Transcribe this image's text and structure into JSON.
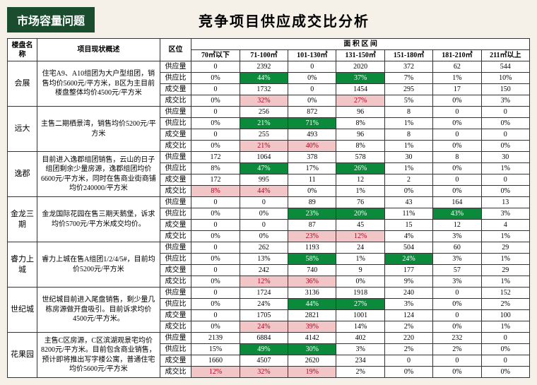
{
  "header": {
    "badge": "市场容量问题",
    "title": "竞争项目供应成交比分析"
  },
  "columns": {
    "name": "楼盘名称",
    "desc": "项目现状概述",
    "metric": "区位",
    "area_group": "面 积 区 间",
    "areas": [
      "70㎡以下",
      "71-100㎡",
      "101-130㎡",
      "131-150㎡",
      "151-180㎡",
      "181-210㎡",
      "211㎡以上"
    ]
  },
  "metrics": [
    "供应量",
    "供应比",
    "成交量",
    "成交比"
  ],
  "colors": {
    "badge_bg": "#1a4d2e",
    "green": "#0a8a3a",
    "pink": "#f2c6c6",
    "pink_text": "#b00020",
    "page_bg": "#f5f0e8"
  },
  "projects": [
    {
      "name": "会展",
      "desc": "住宅A9、A10组团为大户型组团，销售均价5600元/平方米，B区为主目前楼盘整体均价4500元/平方米",
      "rows": [
        {
          "vals": [
            "0",
            "2392",
            "0",
            "2020",
            "372",
            "62",
            "544"
          ],
          "hl": [
            "",
            "",
            "",
            "",
            "",
            "",
            ""
          ]
        },
        {
          "vals": [
            "0%",
            "44%",
            "0%",
            "37%",
            "7%",
            "1%",
            "10%"
          ],
          "hl": [
            "",
            "g",
            "",
            "g",
            "",
            "",
            ""
          ]
        },
        {
          "vals": [
            "0",
            "1732",
            "0",
            "1454",
            "295",
            "17",
            "150"
          ],
          "hl": [
            "",
            "",
            "",
            "",
            "",
            "",
            ""
          ]
        },
        {
          "vals": [
            "0%",
            "32%",
            "0%",
            "27%",
            "5%",
            "0%",
            "3%"
          ],
          "hl": [
            "",
            "p",
            "",
            "p",
            "",
            "",
            ""
          ]
        }
      ]
    },
    {
      "name": "远大",
      "desc": "主售二期栖景湾，销售均价5200元/平方米",
      "rows": [
        {
          "vals": [
            "0",
            "256",
            "872",
            "96",
            "8",
            "0",
            "0"
          ],
          "hl": [
            "",
            "",
            "",
            "",
            "",
            "",
            ""
          ]
        },
        {
          "vals": [
            "0%",
            "21%",
            "71%",
            "8%",
            "1%",
            "0%",
            "0%"
          ],
          "hl": [
            "",
            "g",
            "g",
            "",
            "",
            "",
            ""
          ]
        },
        {
          "vals": [
            "0",
            "255",
            "493",
            "96",
            "8",
            "0",
            "0"
          ],
          "hl": [
            "",
            "",
            "",
            "",
            "",
            "",
            ""
          ]
        },
        {
          "vals": [
            "0%",
            "21%",
            "40%",
            "8%",
            "1%",
            "0%",
            "0%"
          ],
          "hl": [
            "",
            "p",
            "p",
            "",
            "",
            "",
            ""
          ]
        }
      ]
    },
    {
      "name": "逸郡",
      "desc": "目前进入逸郡组团销售，云山的日子组团剩余少量房源，逸郡组团均价6600元/平方米，同时在售商业街商铺均价240000/平方米",
      "rows": [
        {
          "vals": [
            "172",
            "1064",
            "378",
            "578",
            "30",
            "8",
            "30"
          ],
          "hl": [
            "",
            "",
            "",
            "",
            "",
            "",
            ""
          ]
        },
        {
          "vals": [
            "8%",
            "47%",
            "17%",
            "26%",
            "1%",
            "0%",
            "1%"
          ],
          "hl": [
            "",
            "g",
            "",
            "g",
            "",
            "",
            ""
          ]
        },
        {
          "vals": [
            "172",
            "995",
            "11",
            "12",
            "2",
            "0",
            "0"
          ],
          "hl": [
            "",
            "",
            "",
            "",
            "",
            "",
            ""
          ]
        },
        {
          "vals": [
            "8%",
            "44%",
            "0%",
            "1%",
            "0%",
            "0%",
            "0%"
          ],
          "hl": [
            "p",
            "p",
            "",
            "",
            "",
            "",
            ""
          ]
        }
      ]
    },
    {
      "name": "金龙三期",
      "desc": "金龙国际花园在售三期天鹅堡，诉求均价5700元/平方米成交均价。",
      "rows": [
        {
          "vals": [
            "0",
            "0",
            "89",
            "76",
            "43",
            "164",
            "13"
          ],
          "hl": [
            "",
            "",
            "",
            "",
            "",
            "",
            ""
          ]
        },
        {
          "vals": [
            "0%",
            "0%",
            "23%",
            "20%",
            "11%",
            "43%",
            "3%"
          ],
          "hl": [
            "",
            "",
            "g",
            "g",
            "",
            "g",
            ""
          ]
        },
        {
          "vals": [
            "0",
            "0",
            "87",
            "45",
            "15",
            "12",
            "4"
          ],
          "hl": [
            "",
            "",
            "",
            "",
            "",
            "",
            ""
          ]
        },
        {
          "vals": [
            "0%",
            "0%",
            "23%",
            "12%",
            "4%",
            "3%",
            "1%"
          ],
          "hl": [
            "",
            "",
            "p",
            "p",
            "",
            "",
            ""
          ]
        }
      ]
    },
    {
      "name": "睿力上城",
      "desc": "睿力上城在售A组团1/2/4/5#，目前均价5200元/平方米",
      "rows": [
        {
          "vals": [
            "0",
            "262",
            "1193",
            "24",
            "504",
            "60",
            "29"
          ],
          "hl": [
            "",
            "",
            "",
            "",
            "",
            "",
            ""
          ]
        },
        {
          "vals": [
            "0%",
            "13%",
            "58%",
            "1%",
            "24%",
            "3%",
            "1%"
          ],
          "hl": [
            "",
            "",
            "g",
            "",
            "g",
            "",
            ""
          ]
        },
        {
          "vals": [
            "0",
            "242",
            "740",
            "9",
            "177",
            "57",
            "29"
          ],
          "hl": [
            "",
            "",
            "",
            "",
            "",
            "",
            ""
          ]
        },
        {
          "vals": [
            "0%",
            "12%",
            "36%",
            "0%",
            "9%",
            "3%",
            "1%"
          ],
          "hl": [
            "",
            "p",
            "p",
            "",
            "",
            "",
            ""
          ]
        }
      ]
    },
    {
      "name": "世纪城",
      "desc": "世纪城目前进入尾盘销售，剩少量几栋房源做开盘吸引。目前诉求均价4500元/平方米。",
      "rows": [
        {
          "vals": [
            "0",
            "1724",
            "3136",
            "1918",
            "240",
            "0",
            "152"
          ],
          "hl": [
            "",
            "",
            "",
            "",
            "",
            "",
            ""
          ]
        },
        {
          "vals": [
            "0%",
            "24%",
            "44%",
            "27%",
            "3%",
            "0%",
            "2%"
          ],
          "hl": [
            "",
            "",
            "g",
            "g",
            "",
            "",
            ""
          ]
        },
        {
          "vals": [
            "0",
            "1705",
            "2821",
            "1001",
            "124",
            "0",
            "100"
          ],
          "hl": [
            "",
            "",
            "",
            "",
            "",
            "",
            ""
          ]
        },
        {
          "vals": [
            "0%",
            "24%",
            "39%",
            "14%",
            "2%",
            "0%",
            "1%"
          ],
          "hl": [
            "",
            "p",
            "p",
            "",
            "",
            "",
            ""
          ]
        }
      ]
    },
    {
      "name": "花果园",
      "desc": "主售C区房源，C区滨湖观景宅均价8200元/平方米。目前包含商业销售，预计即将推出写字楼公寓，普通住宅均价5600元/平方米",
      "rows": [
        {
          "vals": [
            "2139",
            "6884",
            "4142",
            "402",
            "220",
            "232",
            "0"
          ],
          "hl": [
            "",
            "",
            "",
            "",
            "",
            "",
            ""
          ]
        },
        {
          "vals": [
            "15%",
            "49%",
            "30%",
            "3%",
            "2%",
            "2%",
            "0%"
          ],
          "hl": [
            "",
            "g",
            "g",
            "",
            "",
            "",
            ""
          ]
        },
        {
          "vals": [
            "1660",
            "4507",
            "2620",
            "234",
            "0",
            "0",
            "0"
          ],
          "hl": [
            "",
            "",
            "",
            "",
            "",
            "",
            ""
          ]
        },
        {
          "vals": [
            "12%",
            "32%",
            "19%",
            "2%",
            "0%",
            "0%",
            "0%"
          ],
          "hl": [
            "p",
            "p",
            "p",
            "",
            "",
            "",
            ""
          ]
        }
      ]
    }
  ]
}
